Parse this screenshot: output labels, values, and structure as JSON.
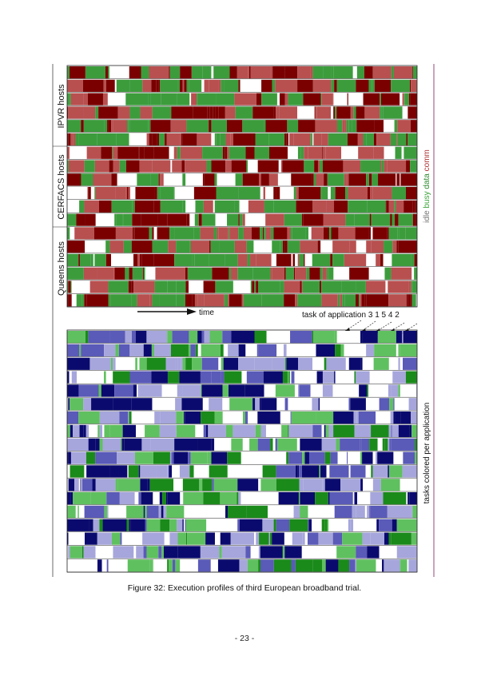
{
  "upper_panel": {
    "group_labels": [
      "IPVR hosts",
      "CERFACS hosts",
      "Queens hosts"
    ],
    "time_label": "time",
    "legend": [
      {
        "label": "idle",
        "color": "#ffffff",
        "text_color": "#777777"
      },
      {
        "label": "busy",
        "color": "#7a0000",
        "text_color": "#3aa53a"
      },
      {
        "label": "data",
        "color": "#b85050",
        "text_color": "#2e8b2e"
      },
      {
        "label": "comm",
        "color": "#3c9c3c",
        "text_color": "#b03030"
      }
    ]
  },
  "lower_panel": {
    "annotation_prefix": "task of application",
    "application_order": [
      "3",
      "1",
      "5",
      "4",
      "2"
    ],
    "side_label": "tasks colored per application",
    "application_colors": {
      "1": "#0a0a6e",
      "2": "#5a5ab8",
      "3": "#a6a6dc",
      "4": "#1a8a1a",
      "5": "#5fc05f"
    }
  },
  "caption": "Figure 32: Execution profiles of third European broadband trial.",
  "page_number": "- 23 -"
}
